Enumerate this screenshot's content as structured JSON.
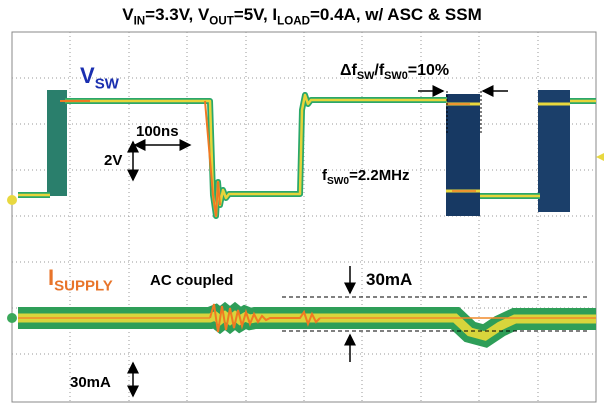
{
  "title": [
    {
      "text": "V"
    },
    {
      "text": "IN",
      "sub": true
    },
    {
      "text": "=3.3V, V"
    },
    {
      "text": "OUT",
      "sub": true
    },
    {
      "text": "=5V, I"
    },
    {
      "text": "LOAD",
      "sub": true
    },
    {
      "text": "=0.4A, w/ ASC & SSM"
    }
  ],
  "labels": {
    "vsw": [
      {
        "text": "V"
      },
      {
        "text": "SW",
        "sub": true
      }
    ],
    "isupply": [
      {
        "text": "I"
      },
      {
        "text": "SUPPLY",
        "sub": true
      }
    ],
    "time_scale": [
      {
        "text": "100ns"
      }
    ],
    "volt_scale": [
      {
        "text": "2V"
      }
    ],
    "fsw0": [
      {
        "text": "f"
      },
      {
        "text": "SW0",
        "sub": true
      },
      {
        "text": "=2.2MHz"
      }
    ],
    "delta": [
      {
        "text": "Δf"
      },
      {
        "text": "SW",
        "sub": true
      },
      {
        "text": "/f"
      },
      {
        "text": "SW0",
        "sub": true
      },
      {
        "text": "=10%"
      }
    ],
    "ac": [
      {
        "text": "AC coupled"
      }
    ],
    "ripple": [
      {
        "text": "30mA"
      }
    ],
    "current_scale": [
      {
        "text": "30mA"
      }
    ]
  }
}
